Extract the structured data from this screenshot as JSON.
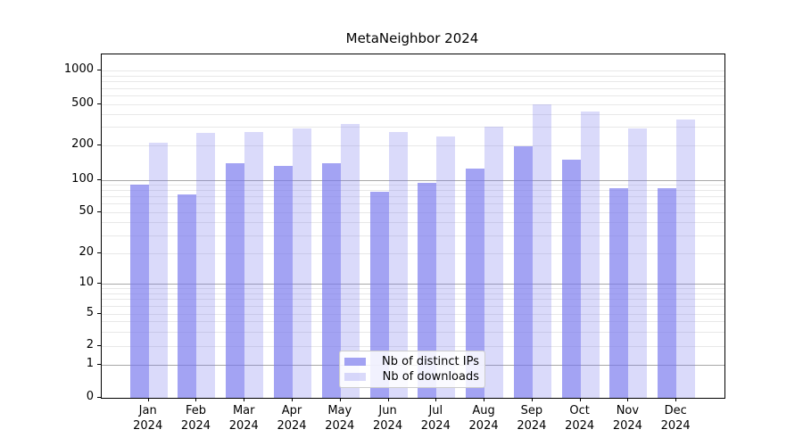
{
  "title": "MetaNeighbor 2024",
  "legend": {
    "items": [
      {
        "label": "Nb of distinct IPs",
        "series": "ips"
      },
      {
        "label": "Nb of downloads",
        "series": "downloads"
      }
    ]
  },
  "colors": {
    "bar_base": "#7777ee",
    "ips_alpha": 0.68,
    "downloads_alpha": 0.27,
    "grid_major": "#a8a8a8",
    "grid_minor": "#e8e8e8",
    "axis": "#000000",
    "legend_border": "#cccccc"
  },
  "x_axis": {
    "months": [
      "Jan",
      "Feb",
      "Mar",
      "Apr",
      "May",
      "Jun",
      "Jul",
      "Aug",
      "Sep",
      "Oct",
      "Nov",
      "Dec"
    ],
    "year_label": "2024"
  },
  "y_axis": {
    "ticks": [
      0,
      1,
      2,
      5,
      10,
      20,
      50,
      100,
      200,
      500,
      1000
    ]
  },
  "chart_data": {
    "type": "bar",
    "title": "MetaNeighbor 2024",
    "categories": [
      "Jan 2024",
      "Feb 2024",
      "Mar 2024",
      "Apr 2024",
      "May 2024",
      "Jun 2024",
      "Jul 2024",
      "Aug 2024",
      "Sep 2024",
      "Oct 2024",
      "Nov 2024",
      "Dec 2024"
    ],
    "series": [
      {
        "name": "Nb of distinct IPs",
        "values": [
          90,
          73,
          139,
          133,
          140,
          77,
          94,
          125,
          195,
          149,
          84,
          83
        ]
      },
      {
        "name": "Nb of downloads",
        "values": [
          210,
          262,
          267,
          290,
          322,
          270,
          245,
          300,
          500,
          430,
          290,
          355
        ]
      }
    ],
    "xlabel": "",
    "ylabel": "",
    "yscale": "log (with 0 baseline)",
    "yticks": [
      0,
      1,
      2,
      5,
      10,
      20,
      50,
      100,
      200,
      500,
      1000
    ],
    "ylim": [
      0,
      1400
    ],
    "grid": "horizontal, major and minor",
    "legend_position": "lower center inside plot"
  }
}
